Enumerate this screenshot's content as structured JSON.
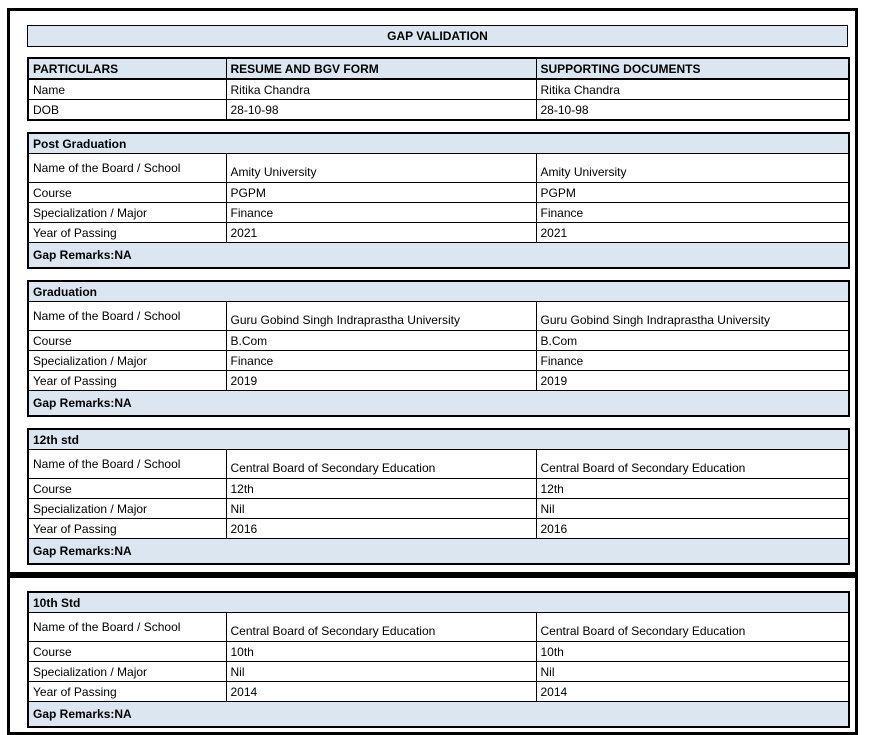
{
  "title": "GAP VALIDATION",
  "particulars": {
    "headers": [
      "PARTICULARS",
      "RESUME AND BGV FORM",
      "SUPPORTING DOCUMENTS"
    ],
    "rows": [
      {
        "label": "Name",
        "resume": "Ritika Chandra",
        "supporting": "Ritika Chandra"
      },
      {
        "label": "DOB",
        "resume": "28-10-98",
        "supporting": "28-10-98"
      }
    ]
  },
  "sections": [
    {
      "heading": "Post Graduation",
      "rows": [
        {
          "label": "Name of the Board / School",
          "resume": "Amity University",
          "supporting": "Amity University"
        },
        {
          "label": "Course",
          "resume": "PGPM",
          "supporting": "PGPM"
        },
        {
          "label": "Specialization / Major",
          "resume": "Finance",
          "supporting": "Finance"
        },
        {
          "label": "Year of Passing",
          "resume": "2021",
          "supporting": "2021"
        }
      ],
      "gap_remarks": "Gap Remarks:NA"
    },
    {
      "heading": "Graduation",
      "rows": [
        {
          "label": "Name of the Board / School",
          "resume": "Guru Gobind Singh Indraprastha University",
          "supporting": "Guru Gobind Singh Indraprastha University"
        },
        {
          "label": "Course",
          "resume": "B.Com",
          "supporting": "B.Com"
        },
        {
          "label": "Specialization / Major",
          "resume": "Finance",
          "supporting": "Finance"
        },
        {
          "label": "Year of Passing",
          "resume": "2019",
          "supporting": "2019"
        }
      ],
      "gap_remarks": "Gap Remarks:NA"
    },
    {
      "heading": "12th std",
      "rows": [
        {
          "label": "Name of the Board / School",
          "resume": "Central Board of Secondary Education",
          "supporting": "Central Board of Secondary Education"
        },
        {
          "label": "Course",
          "resume": "12th",
          "supporting": "12th"
        },
        {
          "label": "Specialization / Major",
          "resume": "Nil",
          "supporting": "Nil"
        },
        {
          "label": "Year of Passing",
          "resume": "2016",
          "supporting": "2016"
        }
      ],
      "gap_remarks": "Gap Remarks:NA"
    },
    {
      "heading": "10th Std",
      "rows": [
        {
          "label": "Name of the Board / School",
          "resume": "Central Board of Secondary Education",
          "supporting": "Central Board of Secondary Education"
        },
        {
          "label": "Course",
          "resume": "10th",
          "supporting": "10th"
        },
        {
          "label": "Specialization / Major",
          "resume": "Nil",
          "supporting": "Nil"
        },
        {
          "label": "Year of Passing",
          "resume": "2014",
          "supporting": "2014"
        }
      ],
      "gap_remarks": "Gap Remarks:NA"
    }
  ],
  "colors": {
    "header_fill": "#DCE6F1",
    "border": "#000000",
    "background": "#FFFFFF"
  }
}
